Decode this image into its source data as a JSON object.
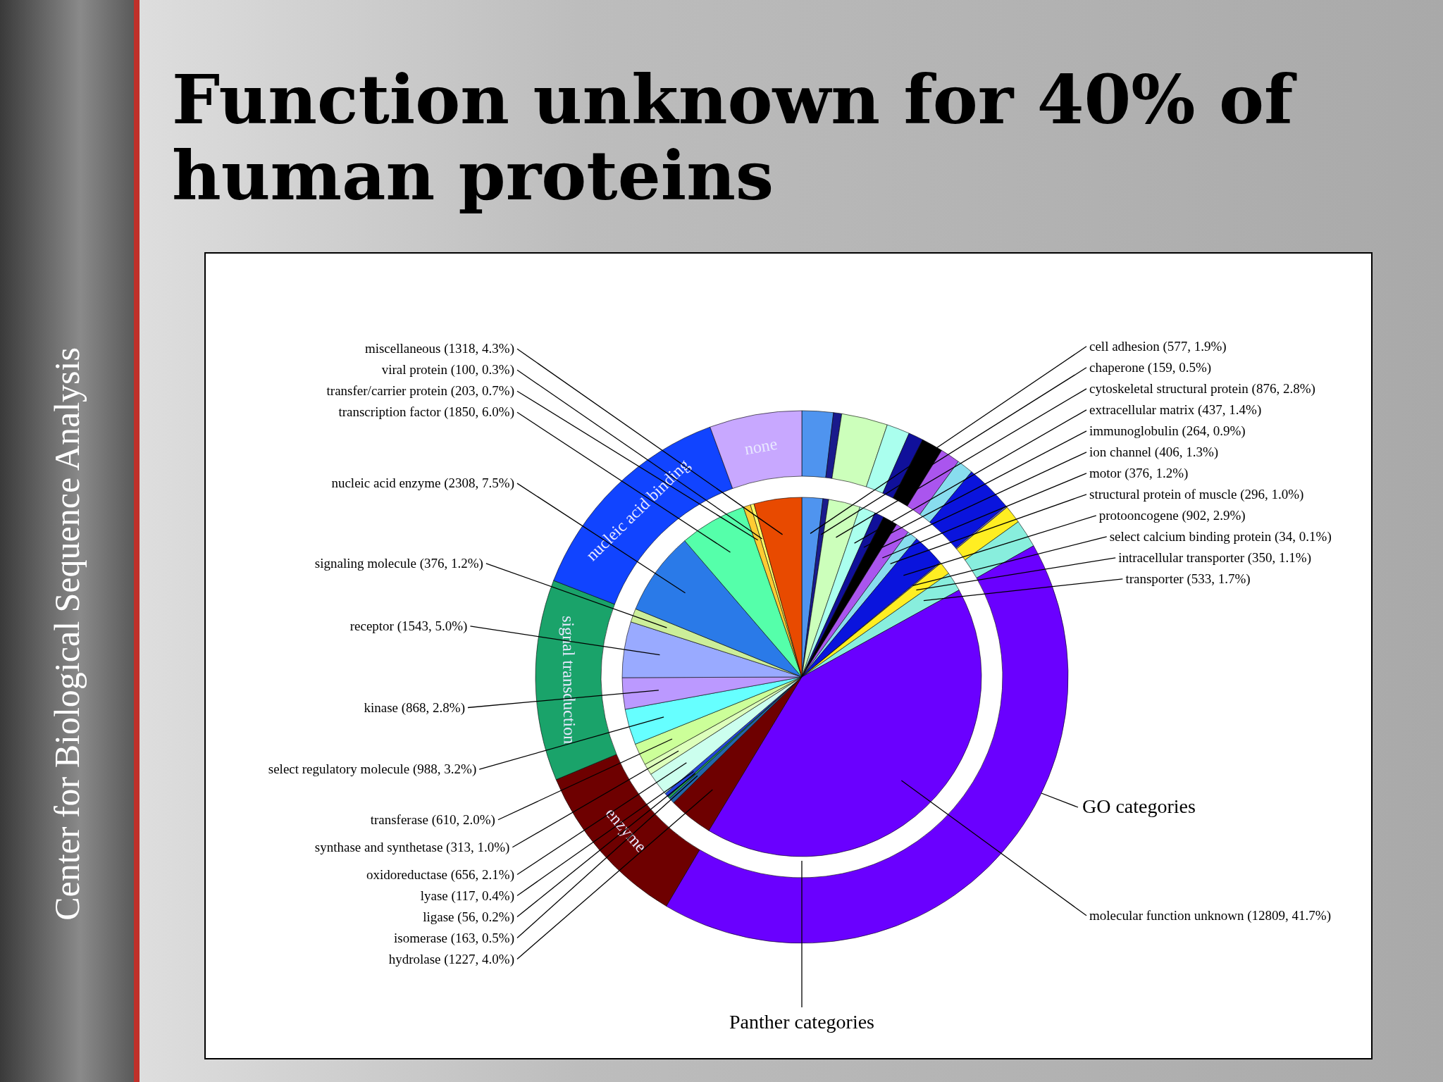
{
  "chart_data": [
    {
      "type": "pie",
      "title": "Function unknown for 40% of human proteins",
      "categories": [
        "cell adhesion (577, 1.9%)",
        "chaperone (159, 0.5%)",
        "cytoskeletal structural protein (876, 2.8%)",
        "extracellular matrix (437, 1.4%)",
        "immunoglobulin (264, 0.9%)",
        "ion channel (406, 1.3%)",
        "motor (376, 1.2%)",
        "structural protein of muscle (296, 1.0%)",
        "protooncogene (902, 2.9%)",
        "select calcium binding protein (34, 0.1%)",
        "intracellular transporter (350, 1.1%)",
        "transporter (533, 1.7%)",
        "molecular function unknown (12809, 41.7%)",
        "hydrolase (1227, 4.0%)",
        "isomerase (163, 0.5%)",
        "ligase (56, 0.2%)",
        "lyase (117, 0.4%)",
        "oxidoreductase (656, 2.1%)",
        "synthase and synthetase (313, 1.0%)",
        "transferase (610, 2.0%)",
        "select regulatory molecule (988, 3.2%)",
        "kinase (868, 2.8%)",
        "receptor (1543, 5.0%)",
        "signaling molecule (376, 1.2%)",
        "nucleic acid enzyme (2308, 7.5%)",
        "transcription factor (1850, 6.0%)",
        "transfer/carrier protein (203, 0.7%)",
        "viral protein (100, 0.3%)",
        "miscellaneous (1318, 4.3%)"
      ],
      "values": [
        577,
        159,
        876,
        437,
        264,
        406,
        376,
        296,
        902,
        34,
        350,
        533,
        12809,
        1227,
        163,
        56,
        117,
        656,
        313,
        610,
        988,
        868,
        1543,
        376,
        2308,
        1850,
        203,
        100,
        1318
      ],
      "colors": [
        "#4f94ef",
        "#1a1a8c",
        "#ccffbb",
        "#aaffee",
        "#10109a",
        "#000000",
        "#aa55ee",
        "#88ddee",
        "#0a14dd",
        "#6666cc",
        "#ffee22",
        "#88eedd",
        "#6a00ff",
        "#6e0000",
        "#2266aa",
        "#22aa55",
        "#2244dd",
        "#ccffee",
        "#ddffbb",
        "#ccff99",
        "#66ffff",
        "#bb99ff",
        "#99aaff",
        "#ccee99",
        "#2a7ae8",
        "#55ffaa",
        "#ffcc33",
        "#ffff66",
        "#e84a00"
      ],
      "annotations": [
        "Panther categories",
        "Center for Biological Sequence Analysis"
      ]
    },
    {
      "type": "donut",
      "categories": [
        null,
        null,
        null,
        null,
        null,
        null,
        null,
        null,
        null,
        null,
        null,
        null,
        null,
        "enzyme",
        "signal transduction",
        "nucleic acid binding",
        "none"
      ],
      "values": [
        1.9,
        0.5,
        2.8,
        1.4,
        0.9,
        1.3,
        1.2,
        1.0,
        2.9,
        0.1,
        1.1,
        1.7,
        41.7,
        10.2,
        12.2,
        13.5,
        5.6
      ],
      "colors": [
        "#4f94ef",
        "#1a1a8c",
        "#ccffbb",
        "#aaffee",
        "#10109a",
        "#000000",
        "#aa55ee",
        "#88ddee",
        "#0a14dd",
        "#6666cc",
        "#ffee22",
        "#88eedd",
        "#6a00ff",
        "#6e0000",
        "#1aa36a",
        "#1144ff",
        "#c8a8ff"
      ],
      "annotations": [
        "GO categories"
      ]
    }
  ]
}
